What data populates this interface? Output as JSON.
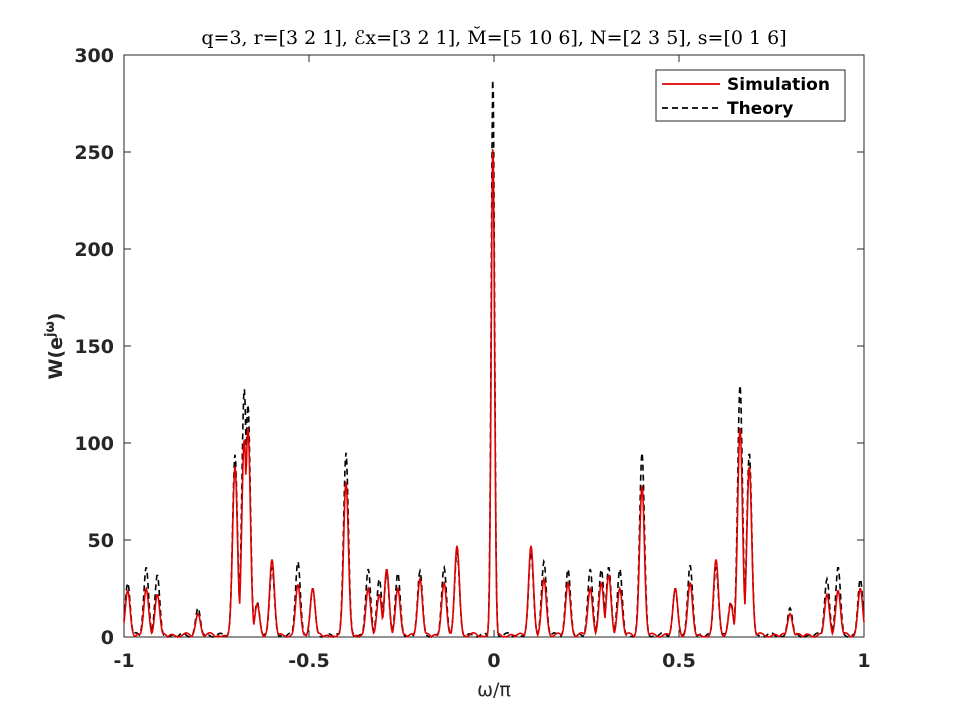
{
  "chart_data": {
    "type": "line",
    "title": "q=3, r=[3 2 1], ℰx=[3 2 1], M̆=[5 10 6], N=[2 3 5], s=[0 1 6]",
    "xlabel": "ω/π",
    "ylabel": "W(e^jω)",
    "xlim": [
      -1,
      1
    ],
    "ylim": [
      0,
      300
    ],
    "xticks": [
      -1,
      -0.5,
      0,
      0.5,
      1
    ],
    "yticks": [
      0,
      50,
      100,
      150,
      200,
      250,
      300
    ],
    "grid": false,
    "legend_position": "top-right",
    "series": [
      {
        "name": "Simulation",
        "color": "#e00000",
        "style": "solid",
        "peaks": [
          [
            -0.99,
            24
          ],
          [
            -0.94,
            25
          ],
          [
            -0.91,
            22
          ],
          [
            -0.8,
            12
          ],
          [
            -0.7,
            88
          ],
          [
            -0.675,
            102
          ],
          [
            -0.665,
            108
          ],
          [
            -0.64,
            17
          ],
          [
            -0.6,
            40
          ],
          [
            -0.53,
            27
          ],
          [
            -0.49,
            25
          ],
          [
            -0.4,
            80
          ],
          [
            -0.34,
            25
          ],
          [
            -0.31,
            22
          ],
          [
            -0.29,
            35
          ],
          [
            -0.26,
            25
          ],
          [
            -0.2,
            30
          ],
          [
            -0.135,
            28
          ],
          [
            -0.1,
            47
          ],
          [
            -0.003,
            254
          ],
          [
            0.1,
            47
          ],
          [
            0.135,
            30
          ],
          [
            0.2,
            28
          ],
          [
            0.26,
            25
          ],
          [
            0.29,
            28
          ],
          [
            0.31,
            32
          ],
          [
            0.34,
            25
          ],
          [
            0.4,
            78
          ],
          [
            0.49,
            25
          ],
          [
            0.53,
            28
          ],
          [
            0.6,
            40
          ],
          [
            0.64,
            17
          ],
          [
            0.665,
            108
          ],
          [
            0.69,
            88
          ],
          [
            0.8,
            12
          ],
          [
            0.9,
            22
          ],
          [
            0.93,
            24
          ],
          [
            0.99,
            25
          ]
        ]
      },
      {
        "name": "Theory",
        "color": "#000000",
        "style": "dashed",
        "peaks": [
          [
            -0.99,
            28
          ],
          [
            -0.94,
            36
          ],
          [
            -0.91,
            32
          ],
          [
            -0.8,
            15
          ],
          [
            -0.7,
            94
          ],
          [
            -0.675,
            128
          ],
          [
            -0.665,
            120
          ],
          [
            -0.64,
            18
          ],
          [
            -0.6,
            36
          ],
          [
            -0.53,
            39
          ],
          [
            -0.49,
            25
          ],
          [
            -0.4,
            95
          ],
          [
            -0.34,
            35
          ],
          [
            -0.31,
            30
          ],
          [
            -0.29,
            33
          ],
          [
            -0.26,
            33
          ],
          [
            -0.2,
            34
          ],
          [
            -0.135,
            36
          ],
          [
            -0.1,
            44
          ],
          [
            -0.003,
            290
          ],
          [
            0.1,
            44
          ],
          [
            0.135,
            39
          ],
          [
            0.2,
            35
          ],
          [
            0.26,
            35
          ],
          [
            0.29,
            35
          ],
          [
            0.31,
            36
          ],
          [
            0.34,
            35
          ],
          [
            0.4,
            95
          ],
          [
            0.49,
            25
          ],
          [
            0.53,
            37
          ],
          [
            0.6,
            36
          ],
          [
            0.64,
            18
          ],
          [
            0.665,
            130
          ],
          [
            0.69,
            95
          ],
          [
            0.8,
            15
          ],
          [
            0.9,
            30
          ],
          [
            0.93,
            36
          ],
          [
            0.99,
            30
          ]
        ]
      }
    ]
  }
}
